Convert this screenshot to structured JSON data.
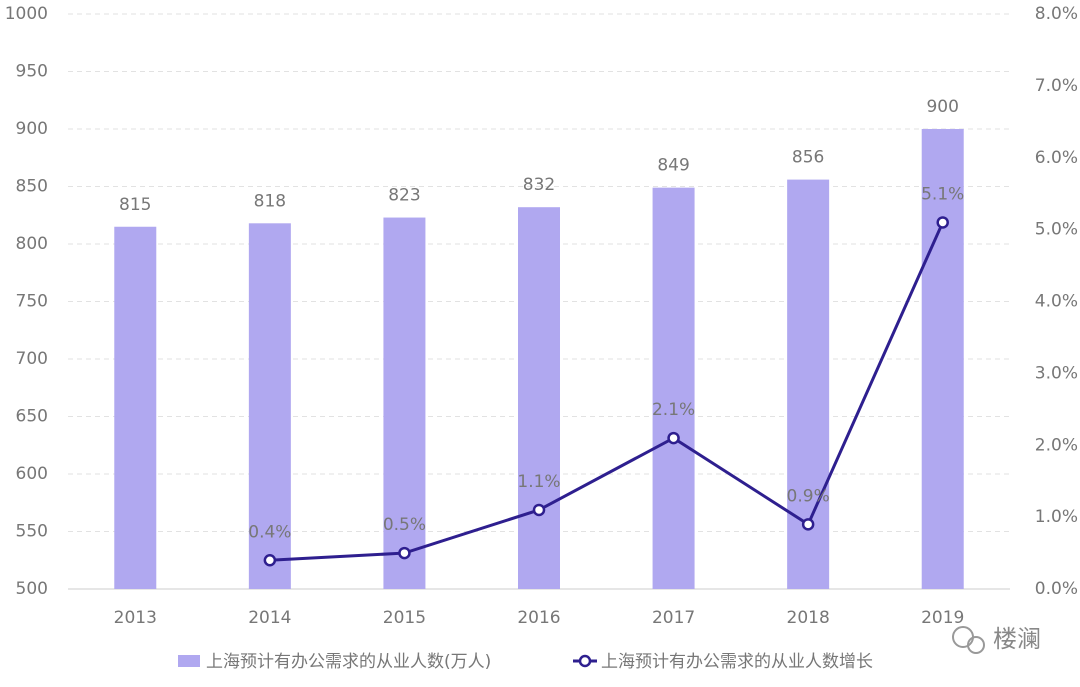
{
  "chart_data": {
    "type": "bar+line",
    "categories": [
      "2013",
      "2014",
      "2015",
      "2016",
      "2017",
      "2018",
      "2019"
    ],
    "series": [
      {
        "name": "上海预计有办公需求的从业人数(万人)",
        "type": "bar",
        "color": "#b0a8f0",
        "values": [
          815,
          818,
          823,
          832,
          849,
          856,
          900
        ]
      },
      {
        "name": "上海预计有办公需求的从业人数增长",
        "type": "line",
        "axis": "y2",
        "color": "#2e1f8f",
        "values": [
          null,
          0.4,
          0.5,
          1.1,
          2.1,
          0.9,
          5.1
        ],
        "value_labels": [
          null,
          "0.4%",
          "0.5%",
          "1.1%",
          "2.1%",
          "0.9%",
          "5.1%"
        ]
      }
    ],
    "ylim": [
      500,
      1000
    ],
    "yticks": [
      500,
      550,
      600,
      650,
      700,
      750,
      800,
      850,
      900,
      950,
      1000
    ],
    "y2lim": [
      0,
      8
    ],
    "y2ticks": [
      {
        "value": 0,
        "label": "0.0%"
      },
      {
        "value": 1,
        "label": "1.0%"
      },
      {
        "value": 2,
        "label": "2.0%"
      },
      {
        "value": 3,
        "label": "3.0%"
      },
      {
        "value": 4,
        "label": "4.0%"
      },
      {
        "value": 5,
        "label": "5.0%"
      },
      {
        "value": 6,
        "label": "6.0%"
      },
      {
        "value": 7,
        "label": "7.0%"
      },
      {
        "value": 8,
        "label": "8.0%"
      }
    ],
    "grid": true
  },
  "watermark": "楼澜"
}
